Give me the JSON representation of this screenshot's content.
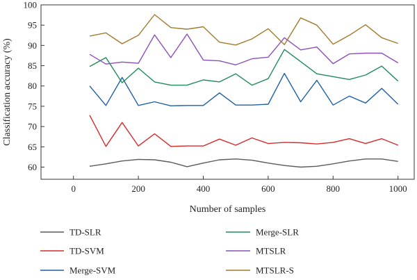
{
  "chart_data": {
    "type": "line",
    "xlabel": "Number of samples",
    "ylabel": "Classification accuracy (%)",
    "xlim": [
      -100,
      1050
    ],
    "ylim": [
      57,
      100
    ],
    "xticks": [
      0,
      200,
      400,
      600,
      800,
      1000
    ],
    "yticks": [
      60,
      65,
      70,
      75,
      80,
      85,
      90,
      95,
      100
    ],
    "grid": false,
    "legend_placement": "bottom",
    "x": [
      50,
      100,
      150,
      200,
      250,
      300,
      350,
      400,
      450,
      500,
      550,
      600,
      650,
      700,
      750,
      800,
      850,
      900,
      950,
      1000
    ],
    "series": [
      {
        "name": "TD-SLR",
        "color": "#5a5a5a",
        "values": [
          60.2,
          60.8,
          61.5,
          61.9,
          61.8,
          61.2,
          60.1,
          61.0,
          61.8,
          62.0,
          61.7,
          61.0,
          60.4,
          60.0,
          60.2,
          60.8,
          61.5,
          62.0,
          62.0,
          61.4
        ]
      },
      {
        "name": "TD-SVM",
        "color": "#d62a2a",
        "values": [
          72.8,
          65.1,
          71.0,
          65.2,
          68.2,
          65.1,
          65.2,
          65.2,
          66.9,
          65.4,
          67.2,
          65.8,
          66.1,
          66.0,
          65.7,
          66.1,
          67.0,
          65.8,
          67.0,
          65.4
        ]
      },
      {
        "name": "Merge-SVM",
        "color": "#1f5fa6",
        "values": [
          80.0,
          75.2,
          82.1,
          75.2,
          76.1,
          75.1,
          75.2,
          75.2,
          78.3,
          75.3,
          75.3,
          75.5,
          83.1,
          76.1,
          81.4,
          75.3,
          77.5,
          75.8,
          79.4,
          75.5
        ]
      },
      {
        "name": "Merge-SLR",
        "color": "#1e8a5a",
        "values": [
          84.8,
          87.0,
          80.8,
          84.4,
          81.0,
          80.2,
          80.2,
          81.5,
          81.0,
          83.0,
          80.2,
          81.8,
          89.0,
          86.0,
          83.0,
          82.3,
          81.6,
          82.7,
          84.9,
          81.2
        ]
      },
      {
        "name": "MTSLR",
        "color": "#8a4fb8",
        "values": [
          87.8,
          85.4,
          85.9,
          85.6,
          92.6,
          87.0,
          92.8,
          86.4,
          86.2,
          85.2,
          86.7,
          87.1,
          91.9,
          88.9,
          89.6,
          85.5,
          87.9,
          88.1,
          88.1,
          85.7
        ]
      },
      {
        "name": "MTSLR-S",
        "color": "#a27a2c",
        "values": [
          92.3,
          93.1,
          90.4,
          92.5,
          97.6,
          94.4,
          94.0,
          94.6,
          90.8,
          90.1,
          91.6,
          94.1,
          90.2,
          96.8,
          95.0,
          90.3,
          92.5,
          95.1,
          91.9,
          90.5
        ]
      }
    ]
  }
}
